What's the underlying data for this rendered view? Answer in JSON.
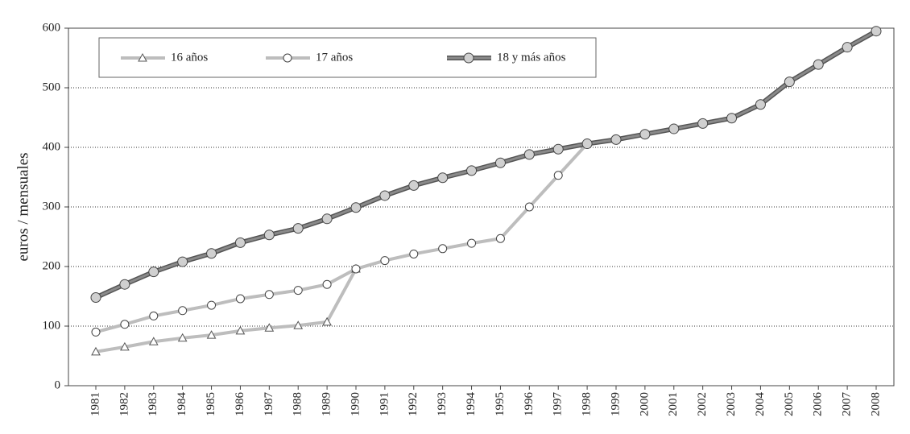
{
  "chart_data": {
    "type": "line",
    "y_label": "euros / mensuales",
    "categories": [
      "1981",
      "1982",
      "1983",
      "1984",
      "1985",
      "1986",
      "1987",
      "1988",
      "1989",
      "1990",
      "1991",
      "1992",
      "1993",
      "1994",
      "1995",
      "1996",
      "1997",
      "1998",
      "1999",
      "2000",
      "2001",
      "2002",
      "2003",
      "2004",
      "2005",
      "2006",
      "2007",
      "2008"
    ],
    "series": [
      {
        "name": "16 años",
        "color": "#bdbdbd",
        "marker": "triangle",
        "values": [
          57,
          65,
          74,
          80,
          85,
          92,
          97,
          101,
          107,
          196,
          null,
          null,
          null,
          null,
          null,
          null,
          null,
          null,
          null,
          null,
          null,
          null,
          null,
          null,
          null,
          null,
          null,
          null
        ]
      },
      {
        "name": "17 años",
        "color": "#bdbdbd",
        "marker": "circle",
        "values": [
          90,
          103,
          117,
          126,
          135,
          146,
          153,
          160,
          170,
          196,
          210,
          221,
          230,
          239,
          247,
          300,
          353,
          406,
          null,
          null,
          null,
          null,
          null,
          null,
          null,
          null,
          null,
          null
        ]
      },
      {
        "name": "18 y más años",
        "color": "#8a8a8a",
        "marker": "circle",
        "values": [
          148,
          170,
          191,
          208,
          222,
          240,
          253,
          264,
          280,
          299,
          319,
          336,
          349,
          361,
          374,
          388,
          397,
          406,
          413,
          422,
          431,
          440,
          449,
          472,
          510,
          539,
          568,
          595
        ]
      }
    ],
    "ylim": [
      0,
      600
    ],
    "yticks": [
      0,
      100,
      200,
      300,
      400,
      500,
      600
    ],
    "grid": true,
    "legend": "top-left"
  }
}
